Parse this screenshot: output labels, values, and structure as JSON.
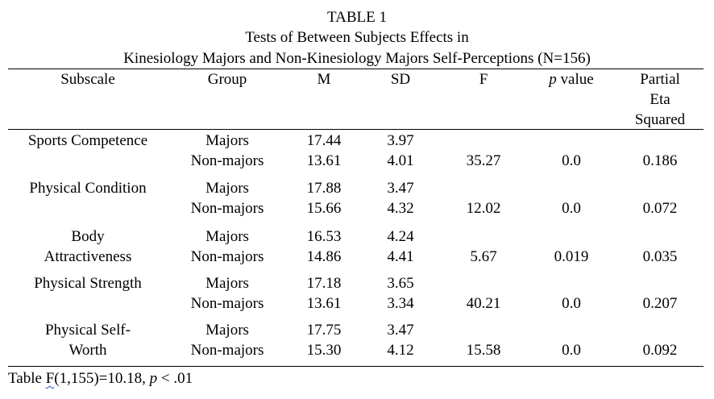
{
  "table": {
    "label": "TABLE 1",
    "title_line1": "Tests of Between Subjects Effects in",
    "title_line2": "Kinesiology Majors and Non-Kinesiology Majors Self-Perceptions (N=156)",
    "headers": {
      "subscale": "Subscale",
      "group": "Group",
      "m": "M",
      "sd": "SD",
      "f": "F",
      "p_italic": "p",
      "p_rest": " value",
      "eta_line1": "Partial",
      "eta_line2": "Eta",
      "eta_line3": "Squared"
    },
    "rows": [
      {
        "subscale_lines": [
          "Sports Competence",
          ""
        ],
        "groups": [
          {
            "group": "Majors",
            "m": "17.44",
            "sd": "3.97"
          },
          {
            "group": "Non-majors",
            "m": "13.61",
            "sd": "4.01"
          }
        ],
        "f": "35.27",
        "p": "0.0",
        "eta": "0.186"
      },
      {
        "subscale_lines": [
          "Physical Condition",
          ""
        ],
        "groups": [
          {
            "group": "Majors",
            "m": "17.88",
            "sd": "3.47"
          },
          {
            "group": "Non-majors",
            "m": "15.66",
            "sd": "4.32"
          }
        ],
        "f": "12.02",
        "p": "0.0",
        "eta": "0.072"
      },
      {
        "subscale_lines": [
          "Body",
          "Attractiveness"
        ],
        "groups": [
          {
            "group": "Majors",
            "m": "16.53",
            "sd": "4.24"
          },
          {
            "group": "Non-majors",
            "m": "14.86",
            "sd": "4.41"
          }
        ],
        "f": "5.67",
        "p": "0.019",
        "eta": "0.035"
      },
      {
        "subscale_lines": [
          "Physical Strength",
          ""
        ],
        "groups": [
          {
            "group": "Majors",
            "m": "17.18",
            "sd": "3.65"
          },
          {
            "group": "Non-majors",
            "m": "13.61",
            "sd": "3.34"
          }
        ],
        "f": "40.21",
        "p": "0.0",
        "eta": "0.207"
      },
      {
        "subscale_lines": [
          "Physical Self-",
          "Worth"
        ],
        "groups": [
          {
            "group": "Majors",
            "m": "17.75",
            "sd": "3.47"
          },
          {
            "group": "Non-majors",
            "m": "15.30",
            "sd": "4.12"
          }
        ],
        "f": "15.58",
        "p": "0.0",
        "eta": "0.092"
      }
    ],
    "footnote": {
      "prefix": "Table ",
      "f_letter": "F",
      "middle": "(1,155)=10.18, ",
      "p_italic": "p",
      "suffix": " < .01"
    }
  }
}
